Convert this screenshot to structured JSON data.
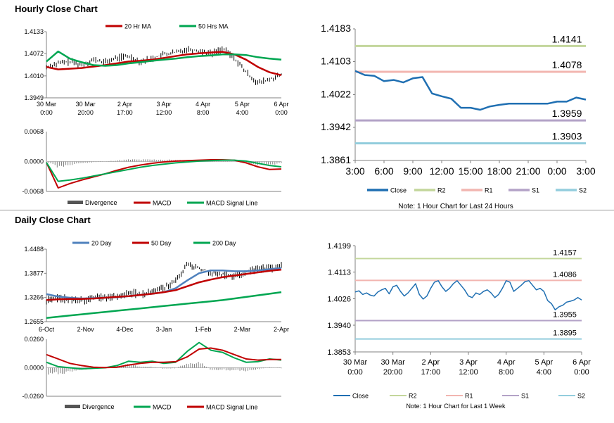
{
  "sections": {
    "hourly_title": "Hourly Close Chart",
    "daily_title": "Daily Close Chart"
  },
  "colors": {
    "red": "#c00000",
    "green": "#00a651",
    "blue": "#4f81bd",
    "close_blue": "#1f6fb2",
    "r2": "#c3d69b",
    "r1": "#f2b5b0",
    "s1": "#b3a2c7",
    "s2": "#93cddd",
    "grey": "#7f7f7f"
  },
  "chart_data": [
    {
      "id": "hourly_price",
      "type": "line",
      "title": "Hourly Close Chart",
      "legend": [
        "20 Hr MA",
        "50 Hrs MA"
      ],
      "x_tick_labels": [
        [
          "30 Mar",
          "0:00"
        ],
        [
          "30 Mar",
          "20:00"
        ],
        [
          "2 Apr",
          "17:00"
        ],
        [
          "3 Apr",
          "12:00"
        ],
        [
          "4 Apr",
          "8:00"
        ],
        [
          "5 Apr",
          "4:00"
        ],
        [
          "6 Apr",
          "0:00"
        ]
      ],
      "y_tick_labels": [
        "1.4133",
        "1.4072",
        "1.4010",
        "1.3949"
      ],
      "ylim": [
        1.3949,
        1.4133
      ],
      "x": [
        0,
        5,
        10,
        15,
        20,
        25,
        30,
        35,
        40,
        45,
        50,
        55,
        60,
        65,
        70,
        75,
        80,
        85,
        90,
        95,
        100
      ],
      "close": [
        1.4035,
        1.4045,
        1.405,
        1.404,
        1.4055,
        1.4048,
        1.406,
        1.4065,
        1.405,
        1.4058,
        1.407,
        1.4075,
        1.4085,
        1.408,
        1.4072,
        1.4085,
        1.406,
        1.402,
        1.399,
        1.4,
        1.4012
      ],
      "series": [
        {
          "name": "20 Hr MA",
          "values": [
            1.4035,
            1.4028,
            1.403,
            1.4032,
            1.4036,
            1.404,
            1.4045,
            1.405,
            1.4052,
            1.4055,
            1.406,
            1.4065,
            1.407,
            1.4073,
            1.4075,
            1.4077,
            1.407,
            1.4055,
            1.4035,
            1.402,
            1.4012
          ]
        },
        {
          "name": "50 Hrs MA",
          "values": [
            1.405,
            1.4078,
            1.4058,
            1.4048,
            1.404,
            1.4038,
            1.404,
            1.4045,
            1.4048,
            1.4052,
            1.4055,
            1.4058,
            1.4062,
            1.4065,
            1.4067,
            1.407,
            1.407,
            1.4068,
            1.4062,
            1.4058,
            1.4055
          ]
        }
      ]
    },
    {
      "id": "hourly_macd",
      "type": "line",
      "legend": [
        "Divergence",
        "MACD",
        "MACD Signal Line"
      ],
      "y_tick_labels": [
        "0.0068",
        "0.0000",
        "-0.0068"
      ],
      "ylim": [
        -0.0068,
        0.0068
      ],
      "x": [
        0,
        5,
        10,
        15,
        20,
        25,
        30,
        35,
        40,
        45,
        50,
        55,
        60,
        65,
        70,
        75,
        80,
        85,
        90,
        95,
        100
      ],
      "series": [
        {
          "name": "MACD",
          "values": [
            -0.0002,
            -0.006,
            -0.005,
            -0.0042,
            -0.0035,
            -0.0028,
            -0.002,
            -0.0013,
            -0.0008,
            -0.0004,
            -0.0001,
            0.0001,
            0.0002,
            0.0003,
            0.0004,
            0.0004,
            0.0003,
            -0.0003,
            -0.0012,
            -0.0018,
            -0.0017
          ]
        },
        {
          "name": "MACD Signal Line",
          "values": [
            -0.0002,
            -0.0045,
            -0.0042,
            -0.0038,
            -0.0033,
            -0.0028,
            -0.0023,
            -0.0018,
            -0.0013,
            -0.0009,
            -0.0006,
            -0.0003,
            -0.0001,
            0.0001,
            0.0002,
            0.0003,
            0.0003,
            0.0001,
            -0.0004,
            -0.0009,
            -0.0012
          ]
        }
      ],
      "divergence": [
        0.0,
        -0.0015,
        -0.0008,
        -0.0004,
        -0.0002,
        0.0,
        0.0003,
        0.0005,
        0.0005,
        0.0005,
        0.0005,
        0.0004,
        0.0003,
        0.0002,
        0.0002,
        0.0001,
        0.0,
        -0.0004,
        -0.0008,
        -0.0009,
        -0.0005
      ]
    },
    {
      "id": "hourly_24h",
      "type": "line",
      "note": "Note: 1 Hour Chart for Last 24 Hours",
      "legend": [
        "Close",
        "R2",
        "R1",
        "S1",
        "S2"
      ],
      "x_tick_labels": [
        "3:00",
        "6:00",
        "9:00",
        "12:00",
        "15:00",
        "18:00",
        "21:00",
        "0:00",
        "3:00"
      ],
      "y_tick_labels": [
        "1.4183",
        "1.4103",
        "1.4022",
        "1.3942",
        "1.3861"
      ],
      "ylim": [
        1.3861,
        1.4183
      ],
      "levels": {
        "R2": 1.4141,
        "R1": 1.4078,
        "S1": 1.3959,
        "S2": 1.3903
      },
      "level_labels": {
        "R2": "1.4141",
        "R1": "1.4078",
        "S1": "1.3959",
        "S2": "1.3903"
      },
      "close": [
        1.408,
        1.407,
        1.4068,
        1.4055,
        1.4058,
        1.4052,
        1.4062,
        1.4065,
        1.4025,
        1.4018,
        1.4012,
        1.399,
        1.399,
        1.3985,
        1.3993,
        1.3997,
        1.4,
        1.4,
        1.4,
        1.4,
        1.4,
        1.4005,
        1.4005,
        1.4015,
        1.401
      ]
    },
    {
      "id": "daily_price",
      "type": "line",
      "title": "Daily Close Chart",
      "legend": [
        "20 Day",
        "50 Day",
        "200 Day"
      ],
      "x_tick_labels": [
        "6-Oct",
        "2-Nov",
        "4-Dec",
        "3-Jan",
        "1-Feb",
        "2-Mar",
        "2-Apr"
      ],
      "y_tick_labels": [
        "1.4488",
        "1.3877",
        "1.3266",
        "1.2655"
      ],
      "ylim": [
        1.2655,
        1.4488
      ],
      "x": [
        0,
        5,
        10,
        15,
        20,
        25,
        30,
        35,
        40,
        45,
        50,
        55,
        60,
        65,
        70,
        75,
        80,
        85,
        90,
        95,
        100
      ],
      "close": [
        1.32,
        1.325,
        1.322,
        1.318,
        1.325,
        1.328,
        1.33,
        1.338,
        1.335,
        1.34,
        1.35,
        1.37,
        1.41,
        1.4,
        1.39,
        1.385,
        1.38,
        1.39,
        1.4,
        1.4,
        1.405
      ],
      "series": [
        {
          "name": "20 Day",
          "values": [
            1.335,
            1.329,
            1.326,
            1.324,
            1.325,
            1.326,
            1.327,
            1.33,
            1.333,
            1.336,
            1.34,
            1.35,
            1.37,
            1.388,
            1.395,
            1.395,
            1.393,
            1.393,
            1.395,
            1.398,
            1.401
          ]
        },
        {
          "name": "50 Day",
          "values": [
            1.32,
            1.322,
            1.323,
            1.323,
            1.324,
            1.326,
            1.328,
            1.33,
            1.333,
            1.336,
            1.34,
            1.345,
            1.355,
            1.365,
            1.372,
            1.378,
            1.382,
            1.386,
            1.39,
            1.394,
            1.397
          ]
        },
        {
          "name": "200 Day",
          "values": [
            1.275,
            1.278,
            1.281,
            1.284,
            1.287,
            1.29,
            1.293,
            1.296,
            1.299,
            1.302,
            1.305,
            1.308,
            1.311,
            1.314,
            1.317,
            1.32,
            1.324,
            1.328,
            1.332,
            1.336,
            1.34
          ]
        }
      ]
    },
    {
      "id": "daily_macd",
      "type": "line",
      "legend": [
        "Divergence",
        "MACD",
        "MACD Signal Line"
      ],
      "y_tick_labels": [
        "0.0260",
        "0.0000",
        "-0.0260"
      ],
      "ylim": [
        -0.026,
        0.026
      ],
      "x": [
        0,
        5,
        10,
        15,
        20,
        25,
        30,
        35,
        40,
        45,
        50,
        55,
        60,
        65,
        70,
        75,
        80,
        85,
        90,
        95,
        100
      ],
      "series": [
        {
          "name": "MACD",
          "values": [
            0.005,
            0.001,
            0.0,
            -0.001,
            -0.0005,
            0.0,
            0.002,
            0.006,
            0.005,
            0.006,
            0.004,
            0.005,
            0.015,
            0.023,
            0.016,
            0.014,
            0.009,
            0.005,
            0.0055,
            0.008,
            0.007
          ]
        },
        {
          "name": "MACD Signal Line",
          "values": [
            0.012,
            0.008,
            0.004,
            0.002,
            0.0005,
            0.0002,
            0.0005,
            0.0025,
            0.004,
            0.005,
            0.005,
            0.0055,
            0.01,
            0.017,
            0.018,
            0.016,
            0.012,
            0.008,
            0.007,
            0.0075,
            0.0075
          ]
        }
      ],
      "divergence": [
        -0.007,
        -0.006,
        -0.004,
        -0.002,
        -0.001,
        -0.0002,
        0.0015,
        0.0035,
        0.001,
        0.001,
        -0.001,
        -0.0005,
        0.005,
        0.006,
        -0.002,
        -0.002,
        -0.003,
        -0.003,
        -0.0015,
        0.0005,
        -0.0005
      ]
    },
    {
      "id": "daily_week",
      "type": "line",
      "note": "Note: 1 Hour Chart for Last 1 Week",
      "legend": [
        "Close",
        "R2",
        "R1",
        "S1",
        "S2"
      ],
      "x_tick_labels": [
        [
          "30 Mar",
          "0:00"
        ],
        [
          "30 Mar",
          "20:00"
        ],
        [
          "2 Apr",
          "17:00"
        ],
        [
          "3 Apr",
          "12:00"
        ],
        [
          "4 Apr",
          "8:00"
        ],
        [
          "5 Apr",
          "4:00"
        ],
        [
          "6 Apr",
          "0:00"
        ]
      ],
      "y_tick_labels": [
        "1.4199",
        "1.4113",
        "1.4026",
        "1.3940",
        "1.3853"
      ],
      "ylim": [
        1.3853,
        1.4199
      ],
      "levels": {
        "R2": 1.4157,
        "R1": 1.4086,
        "S1": 1.3955,
        "S2": 1.3895
      },
      "level_labels": {
        "R2": "1.4157",
        "R1": "1.4086",
        "S1": "1.3955",
        "S2": "1.3895"
      },
      "close": [
        1.4048,
        1.4052,
        1.404,
        1.4045,
        1.4038,
        1.4035,
        1.4048,
        1.4055,
        1.406,
        1.4042,
        1.4065,
        1.407,
        1.405,
        1.4035,
        1.4045,
        1.406,
        1.4075,
        1.404,
        1.4025,
        1.4035,
        1.406,
        1.408,
        1.4085,
        1.4065,
        1.405,
        1.406,
        1.4075,
        1.4085,
        1.407,
        1.4055,
        1.4035,
        1.403,
        1.4045,
        1.404,
        1.405,
        1.4055,
        1.4045,
        1.403,
        1.404,
        1.406,
        1.4085,
        1.408,
        1.405,
        1.406,
        1.407,
        1.4082,
        1.4085,
        1.407,
        1.4055,
        1.406,
        1.405,
        1.402,
        1.401,
        1.399,
        1.4,
        1.4005,
        1.4015,
        1.4018,
        1.4022,
        1.403,
        1.4022
      ]
    }
  ]
}
